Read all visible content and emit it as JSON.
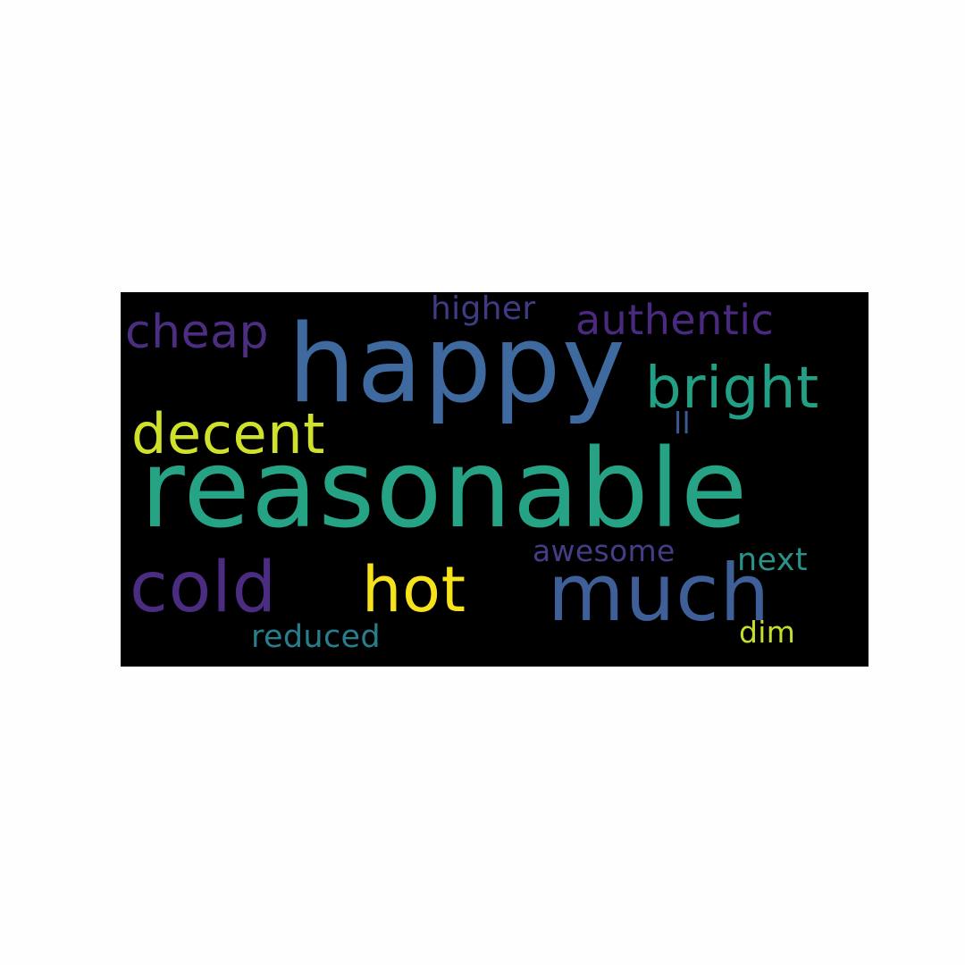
{
  "word_cloud": {
    "background": "#000000",
    "words": [
      {
        "id": "reasonable",
        "text": "reasonable",
        "color": "#26a284"
      },
      {
        "id": "happy",
        "text": "happy",
        "color": "#3e6aa0"
      },
      {
        "id": "much",
        "text": "much",
        "color": "#3f5f98"
      },
      {
        "id": "bright",
        "text": "bright",
        "color": "#22a085"
      },
      {
        "id": "cold",
        "text": "cold",
        "color": "#4a2c80"
      },
      {
        "id": "hot",
        "text": "hot",
        "color": "#f6e31b"
      },
      {
        "id": "decent",
        "text": "decent",
        "color": "#cfe128"
      },
      {
        "id": "cheap",
        "text": "cheap",
        "color": "#4b2e82"
      },
      {
        "id": "authentic",
        "text": "authentic",
        "color": "#4a2a80"
      },
      {
        "id": "higher",
        "text": "higher",
        "color": "#3e3c84"
      },
      {
        "id": "reduced",
        "text": "reduced",
        "color": "#287e8c"
      },
      {
        "id": "next",
        "text": "next",
        "color": "#2a9389"
      },
      {
        "id": "awesome",
        "text": "awesome",
        "color": "#433e86"
      },
      {
        "id": "dim",
        "text": "dim",
        "color": "#c5de2b"
      },
      {
        "id": "ll",
        "text": "ll",
        "color": "#3b5a94"
      }
    ]
  }
}
